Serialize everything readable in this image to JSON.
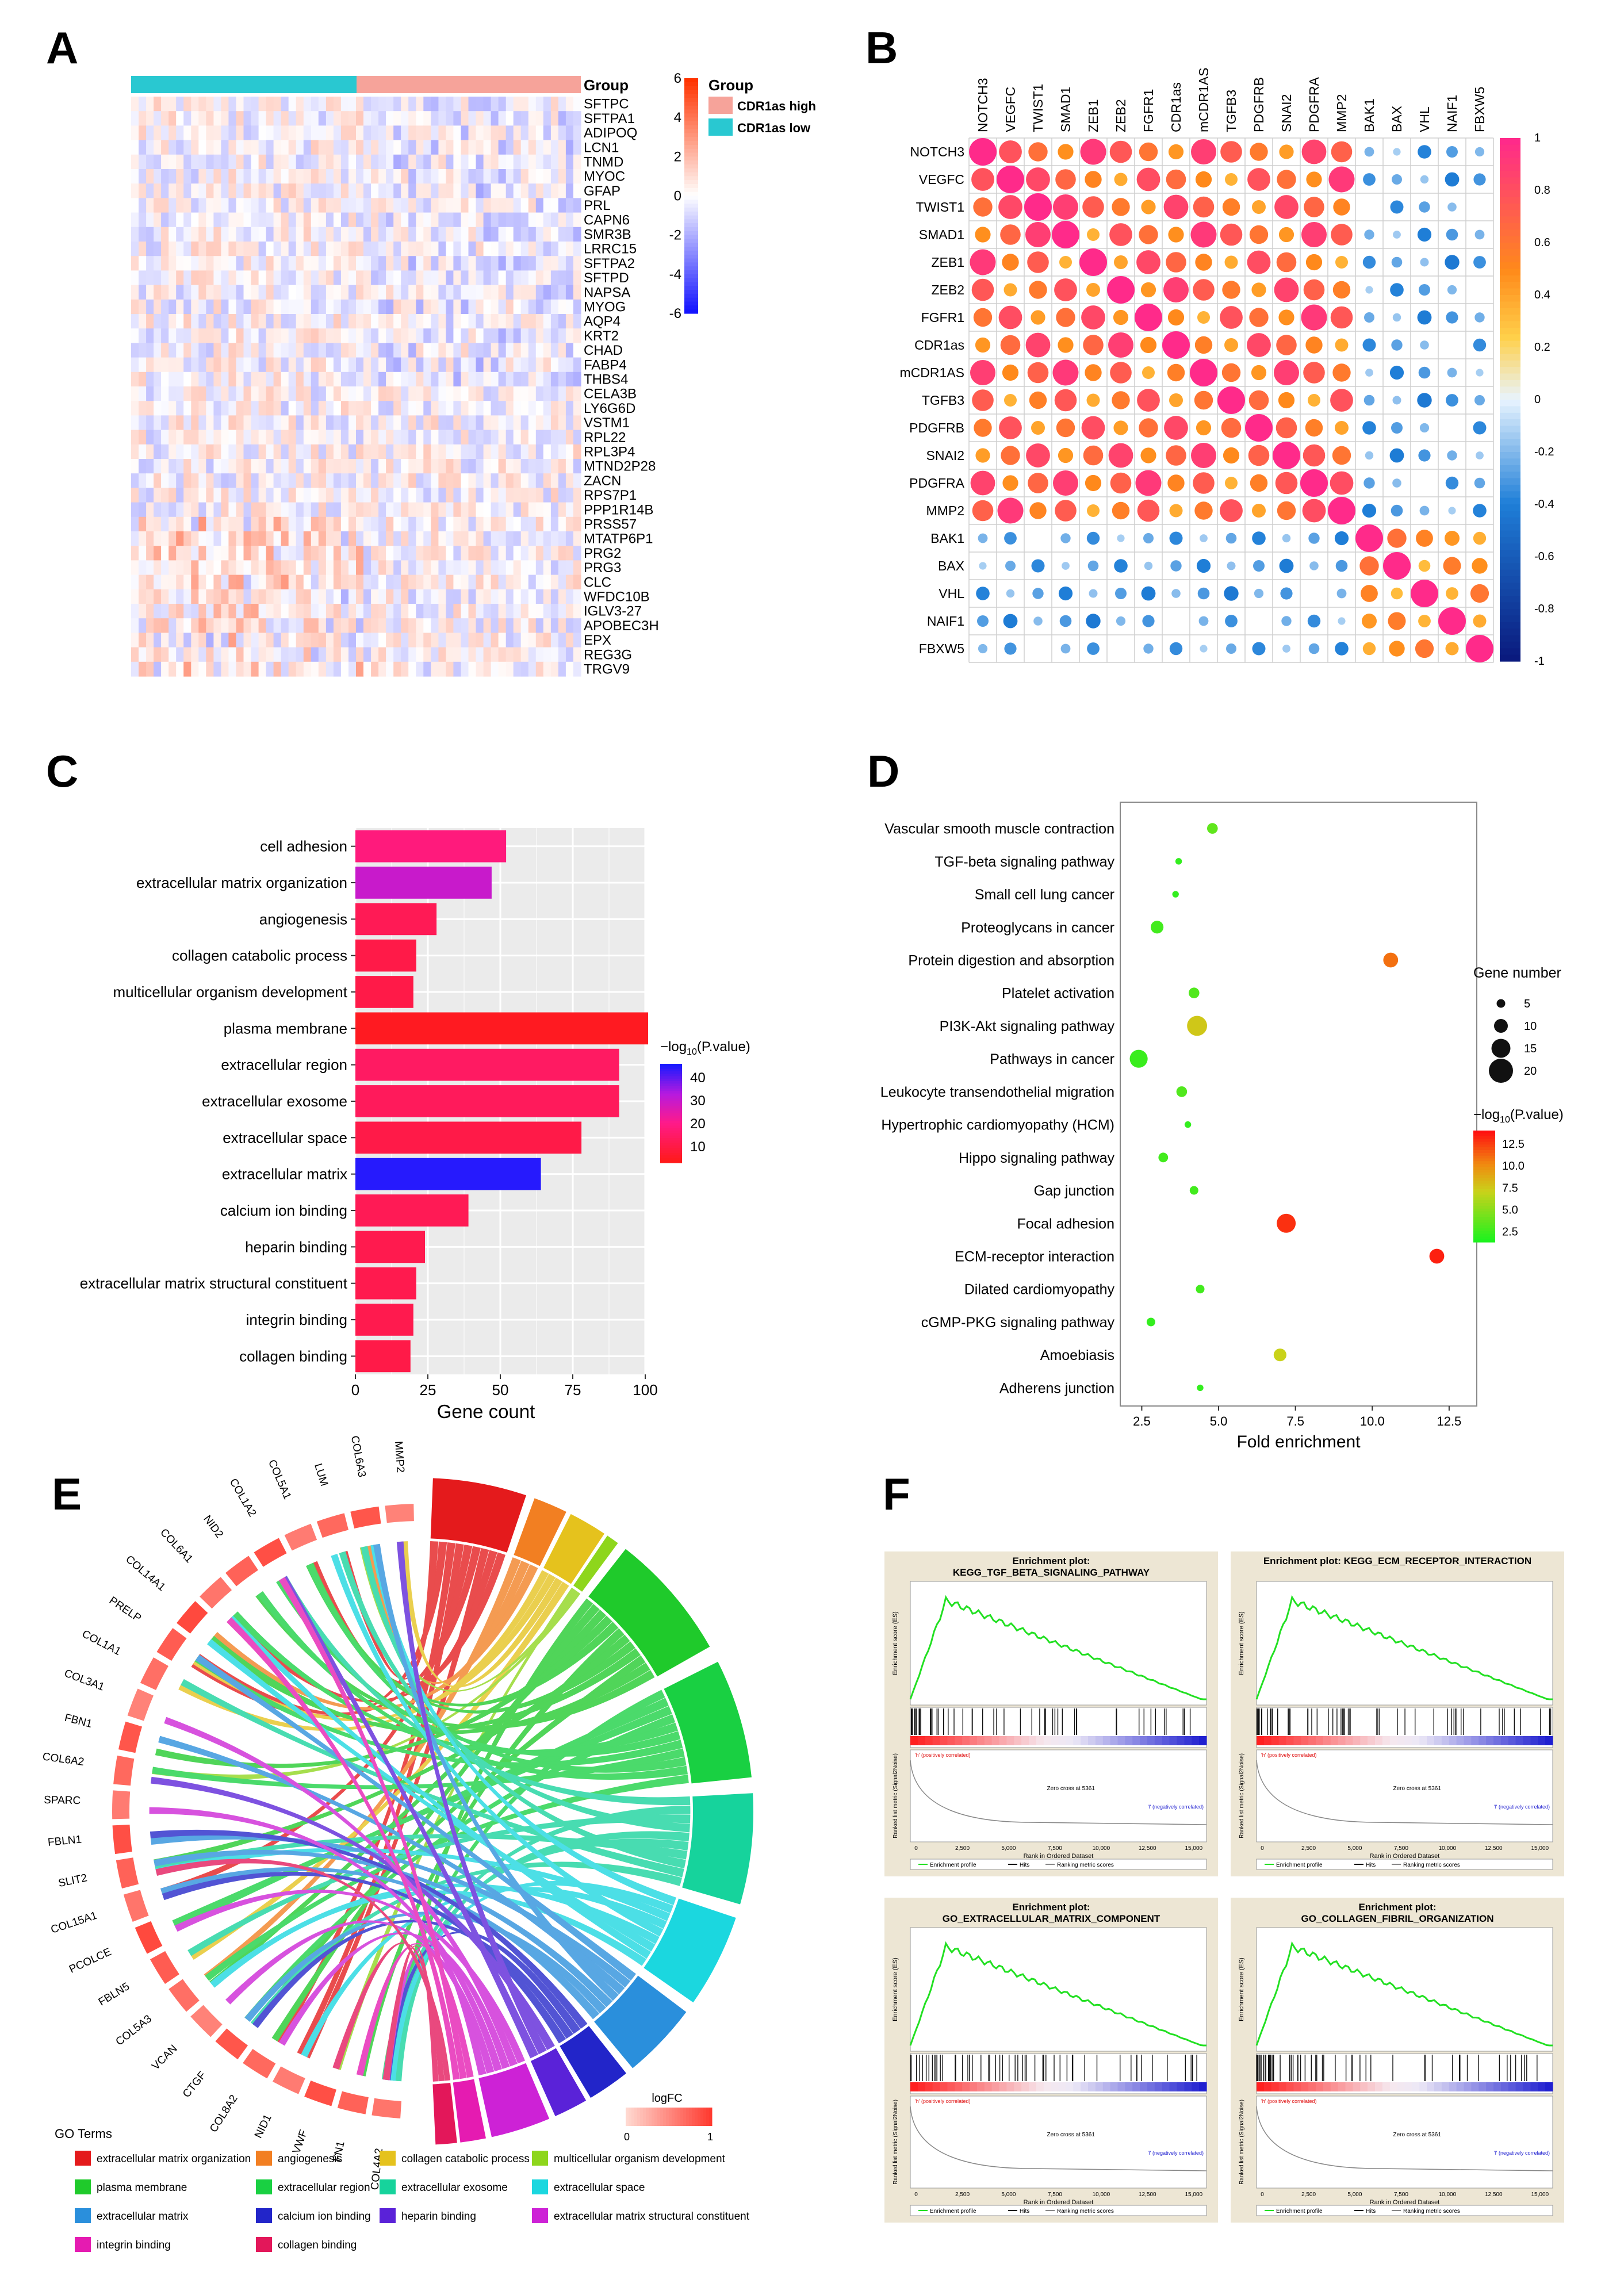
{
  "panels": {
    "a": "A",
    "b": "B",
    "c": "C",
    "d": "D",
    "e": "E",
    "f": "F"
  },
  "chart_data": [
    {
      "panel": "A",
      "type": "heatmap",
      "title": "",
      "annotation_title": "Group",
      "legend_title": "Group",
      "groups": [
        {
          "name": "CDR1as high",
          "color": "#f6a39a"
        },
        {
          "name": "CDR1as low",
          "color": "#29c8d1"
        }
      ],
      "genes": [
        "SFTPC",
        "SFTPA1",
        "ADIPOQ",
        "LCN1",
        "TNMD",
        "MYOC",
        "GFAP",
        "PRL",
        "CAPN6",
        "SMR3B",
        "LRRC15",
        "SFTPA2",
        "SFTPD",
        "NAPSA",
        "MYOG",
        "AQP4",
        "KRT2",
        "CHAD",
        "FABP4",
        "THBS4",
        "CELA3B",
        "LY6G6D",
        "VSTM1",
        "RPL22",
        "RPL3P4",
        "MTND2P28",
        "ZACN",
        "RPS7P1",
        "PPP1R14B",
        "PRSS57",
        "MTATP6P1",
        "PRG2",
        "PRG3",
        "CLC",
        "WFDC10B",
        "IGLV3-27",
        "APOBEC3H",
        "EPX",
        "REG3G",
        "TRGV9"
      ],
      "colorbar_ticks": [
        "6",
        "4",
        "2",
        "0",
        "-2",
        "-4",
        "-6"
      ],
      "colorbar_range": [
        -6,
        6
      ]
    },
    {
      "panel": "B",
      "type": "heatmap",
      "subtype": "correlation-dot-matrix",
      "genes": [
        "NOTCH3",
        "VEGFC",
        "TWIST1",
        "SMAD1",
        "ZEB1",
        "ZEB2",
        "FGFR1",
        "CDR1as",
        "mCDR1AS",
        "TGFB3",
        "PDGFRB",
        "SNAI2",
        "PDGFRA",
        "MMP2",
        "BAK1",
        "BAX",
        "VHL",
        "NAIF1",
        "FBXW5"
      ],
      "colorbar_ticks": [
        "1",
        "0.8",
        "0.6",
        "0.4",
        "0.2",
        "0",
        "-0.2",
        "-0.4",
        "-0.6",
        "-0.8",
        "-1"
      ],
      "colorbar_range": [
        -1,
        1
      ],
      "matrix_note": "estimated correlation coefficients"
    },
    {
      "panel": "C",
      "type": "bar",
      "orientation": "horizontal",
      "categories": [
        "cell adhesion",
        "extracellular matrix organization",
        "angiogenesis",
        "collagen catabolic process",
        "multicellular organism development",
        "plasma membrane",
        "extracellular region",
        "extracellular exosome",
        "extracellular space",
        "extracellular matrix",
        "calcium ion binding",
        "heparin binding",
        "extracellular matrix structural constituent",
        "integrin binding",
        "collagen binding"
      ],
      "values": [
        52,
        47,
        28,
        21,
        20,
        101,
        91,
        91,
        78,
        64,
        39,
        24,
        21,
        20,
        19
      ],
      "neg_log10_p": [
        18,
        30,
        12,
        10,
        10,
        4,
        14,
        13,
        10,
        45,
        12,
        11,
        11,
        11,
        10
      ],
      "xlabel": "Gene count",
      "ylabel": "",
      "xlim": [
        0,
        100
      ],
      "xticks": [
        "0",
        "25",
        "50",
        "75",
        "100"
      ],
      "colorbar_title": "−log",
      "colorbar_title_sub": "10",
      "colorbar_title_tail": "(P.value)",
      "colorbar_ticks": [
        "40",
        "30",
        "20",
        "10"
      ],
      "colorbar_range": [
        3,
        46
      ]
    },
    {
      "panel": "D",
      "type": "scatter",
      "categories": [
        "Vascular smooth muscle contraction",
        "TGF-beta signaling pathway",
        "Small cell lung cancer",
        "Proteoglycans in cancer",
        "Protein digestion and absorption",
        "Platelet activation",
        "PI3K-Akt signaling pathway",
        "Pathways in cancer",
        "Leukocyte transendothelial migration",
        "Hypertrophic cardiomyopathy (HCM)",
        "Hippo signaling pathway",
        "Gap junction",
        "Focal adhesion",
        "ECM-receptor interaction",
        "Dilated cardiomyopathy",
        "cGMP-PKG signaling pathway",
        "Amoebiasis",
        "Adherens junction"
      ],
      "fold_enrichment": [
        4.8,
        3.7,
        3.6,
        3.0,
        10.6,
        4.2,
        4.3,
        2.4,
        3.8,
        4.0,
        3.2,
        4.2,
        7.2,
        12.1,
        4.4,
        2.8,
        7.0,
        4.4
      ],
      "gene_number": [
        7,
        3,
        3,
        9,
        11,
        7,
        16,
        14,
        7,
        3,
        6,
        5,
        15,
        11,
        5,
        5,
        9,
        3
      ],
      "neg_log10_p": [
        3.5,
        2.0,
        2.0,
        2.5,
        11.0,
        3.0,
        7.5,
        2.2,
        3.0,
        2.0,
        2.5,
        2.5,
        13.0,
        13.5,
        2.5,
        2.0,
        7.0,
        2.0
      ],
      "xlabel": "Fold enrichment",
      "xlim": [
        1.8,
        13.4
      ],
      "xticks": [
        2.5,
        5.0,
        7.5,
        10.0,
        12.5
      ],
      "xtick_labels": [
        "2.5",
        "5.0",
        "7.5",
        "10.0",
        "12.5"
      ],
      "size_legend_title": "Gene number",
      "size_legend": [
        5,
        10,
        15,
        20
      ],
      "color_legend_title": "−log",
      "color_legend_sub": "10",
      "color_legend_tail": "(P.value)",
      "color_ticks": [
        "12.5",
        "10.0",
        "7.5",
        "5.0",
        "2.5"
      ],
      "color_range": [
        1.3,
        14
      ]
    },
    {
      "panel": "E",
      "type": "chord",
      "genes": [
        "MMP2",
        "COL6A3",
        "LUM",
        "COL5A1",
        "COL1A2",
        "NID2",
        "COL6A1",
        "COL14A1",
        "PRELP",
        "COL1A1",
        "COL3A1",
        "FBN1",
        "COL6A2",
        "SPARC",
        "FBLN1",
        "SLIT2",
        "COL15A1",
        "PCOLCE",
        "FBLN5",
        "COL5A3",
        "VCAN",
        "CTGF",
        "COL8A2",
        "NID1",
        "VWF",
        "FN1",
        "COL4A2"
      ],
      "logfc_title": "logFC",
      "logfc_ticks": [
        "0",
        "1"
      ],
      "legend_title": "GO Terms",
      "terms": [
        {
          "name": "extracellular matrix organization",
          "color": "#e41a1c"
        },
        {
          "name": "angiogenesis",
          "color": "#f27f22"
        },
        {
          "name": "collagen catabolic process",
          "color": "#e5c21d"
        },
        {
          "name": "multicellular organism development",
          "color": "#8ed61c"
        },
        {
          "name": "plasma membrane",
          "color": "#1fca2b"
        },
        {
          "name": "extracellular region",
          "color": "#19d042"
        },
        {
          "name": "extracellular exosome",
          "color": "#16d39c"
        },
        {
          "name": "extracellular space",
          "color": "#1bd7df"
        },
        {
          "name": "extracellular matrix",
          "color": "#2a8fdc"
        },
        {
          "name": "calcium ion binding",
          "color": "#2225c9"
        },
        {
          "name": "heparin binding",
          "color": "#5a22d8"
        },
        {
          "name": "extracellular matrix structural constituent",
          "color": "#cd22d6"
        },
        {
          "name": "integrin binding",
          "color": "#e51bb1"
        },
        {
          "name": "collagen binding",
          "color": "#e3175a"
        }
      ]
    },
    {
      "panel": "F",
      "type": "line",
      "subtype": "gsea-enrichment",
      "plots": [
        {
          "title_line1": "Enrichment plot:",
          "title_line2": "KEGG_TGF_BETA_SIGNALING_PATHWAY"
        },
        {
          "title_line1": "Enrichment plot: KEGG_ECM_RECEPTOR_INTERACTION",
          "title_line2": ""
        },
        {
          "title_line1": "Enrichment plot:",
          "title_line2": "GO_EXTRACELLULAR_MATRIX_COMPONENT"
        },
        {
          "title_line1": "Enrichment plot:",
          "title_line2": "GO_COLLAGEN_FIBRIL_ORGANIZATION"
        }
      ],
      "es_ylabel": "Enrichment score (ES)",
      "rank_ylabel": "Ranked list metric (Signal2Noise)",
      "xlabel": "Rank in Ordered Dataset",
      "xticks": [
        "0",
        "2,500",
        "5,000",
        "7,500",
        "10,000",
        "12,500",
        "15,000"
      ],
      "pos_label": "'h' (positively correlated)",
      "neg_label": "'l' (negatively correlated)",
      "zero_cross": "Zero cross at 5361",
      "legend": [
        "Enrichment profile",
        "Hits",
        "Ranking metric scores"
      ]
    }
  ]
}
